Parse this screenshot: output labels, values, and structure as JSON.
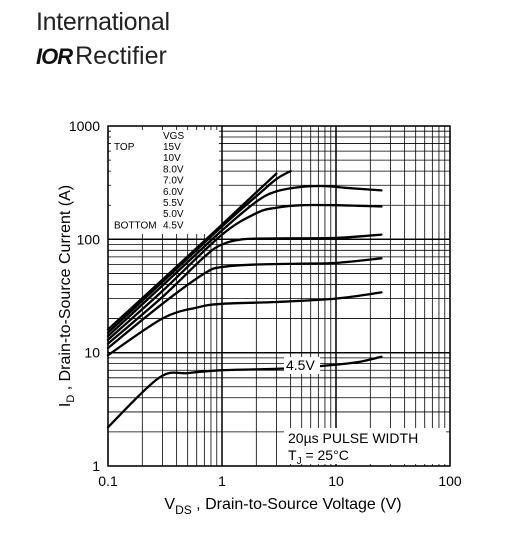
{
  "brand": {
    "line1": "International",
    "logo_mark": "IOR",
    "line2": "Rectifier"
  },
  "chart_data": {
    "type": "line",
    "xscale": "log",
    "yscale": "log",
    "xlim": [
      0.1,
      100
    ],
    "ylim": [
      1,
      1000
    ],
    "grid": true,
    "xlabel_main": "V",
    "xlabel_sub": "DS",
    "xlabel_rest": " , Drain-to-Source Voltage (V)",
    "ylabel_main": "I",
    "ylabel_sub": "D",
    "ylabel_rest": " ,  Drain-to-Source Current (A)",
    "x_ticks": [
      {
        "value": 0.1,
        "label": "0.1"
      },
      {
        "value": 1,
        "label": "1"
      },
      {
        "value": 10,
        "label": "10"
      },
      {
        "value": 100,
        "label": "100"
      }
    ],
    "y_ticks": [
      {
        "value": 1,
        "label": "1"
      },
      {
        "value": 10,
        "label": "10"
      },
      {
        "value": 100,
        "label": "100"
      },
      {
        "value": 1000,
        "label": "1000"
      }
    ],
    "legend": {
      "header": "VGS",
      "top_label": "TOP",
      "bottom_label": "BOTTOM",
      "entries": [
        "15V",
        "10V",
        "8.0V",
        "7.0V",
        "6.0V",
        "5.5V",
        "5.0V",
        "4.5V"
      ]
    },
    "annotation_curve": "4.5V",
    "annotation_pulse": "20µs PULSE WIDTH",
    "annotation_tj_main": "T",
    "annotation_tj_sub": "J",
    "annotation_tj_rest": " = 25°C",
    "series": [
      {
        "name": "15V",
        "points": [
          [
            0.1,
            16
          ],
          [
            0.3,
            44
          ],
          [
            1,
            135
          ],
          [
            2,
            260
          ],
          [
            3,
            380
          ]
        ]
      },
      {
        "name": "10V",
        "points": [
          [
            0.1,
            15
          ],
          [
            0.3,
            42
          ],
          [
            1,
            130
          ],
          [
            2,
            240
          ],
          [
            3,
            340
          ],
          [
            4,
            400
          ]
        ]
      },
      {
        "name": "8.0V",
        "points": [
          [
            0.1,
            14
          ],
          [
            0.3,
            39
          ],
          [
            1,
            120
          ],
          [
            2,
            215
          ],
          [
            3,
            265
          ],
          [
            5,
            290
          ],
          [
            8,
            295
          ],
          [
            12,
            285
          ],
          [
            25,
            270
          ]
        ]
      },
      {
        "name": "7.0V",
        "points": [
          [
            0.1,
            13
          ],
          [
            0.3,
            35
          ],
          [
            1,
            110
          ],
          [
            2,
            170
          ],
          [
            3,
            190
          ],
          [
            5,
            200
          ],
          [
            10,
            200
          ],
          [
            25,
            195
          ]
        ]
      },
      {
        "name": "6.0V",
        "points": [
          [
            0.1,
            12
          ],
          [
            0.3,
            31
          ],
          [
            0.7,
            70
          ],
          [
            1,
            90
          ],
          [
            1.5,
            100
          ],
          [
            3,
            102
          ],
          [
            10,
            103
          ],
          [
            25,
            110
          ]
        ]
      },
      {
        "name": "5.5V",
        "points": [
          [
            0.1,
            11
          ],
          [
            0.3,
            27
          ],
          [
            0.7,
            50
          ],
          [
            1,
            57
          ],
          [
            2,
            60
          ],
          [
            5,
            61
          ],
          [
            10,
            62
          ],
          [
            25,
            68
          ]
        ]
      },
      {
        "name": "5.0V",
        "points": [
          [
            0.1,
            9.5
          ],
          [
            0.3,
            20
          ],
          [
            0.6,
            25
          ],
          [
            1,
            27
          ],
          [
            3,
            28
          ],
          [
            10,
            30
          ],
          [
            25,
            34
          ]
        ]
      },
      {
        "name": "4.5V",
        "points": [
          [
            0.1,
            2.2
          ],
          [
            0.28,
            6.0
          ],
          [
            0.5,
            6.6
          ],
          [
            1,
            7.0
          ],
          [
            3,
            7.2
          ],
          [
            7,
            7.6
          ],
          [
            15,
            8.2
          ],
          [
            25,
            9.2
          ]
        ]
      }
    ]
  }
}
